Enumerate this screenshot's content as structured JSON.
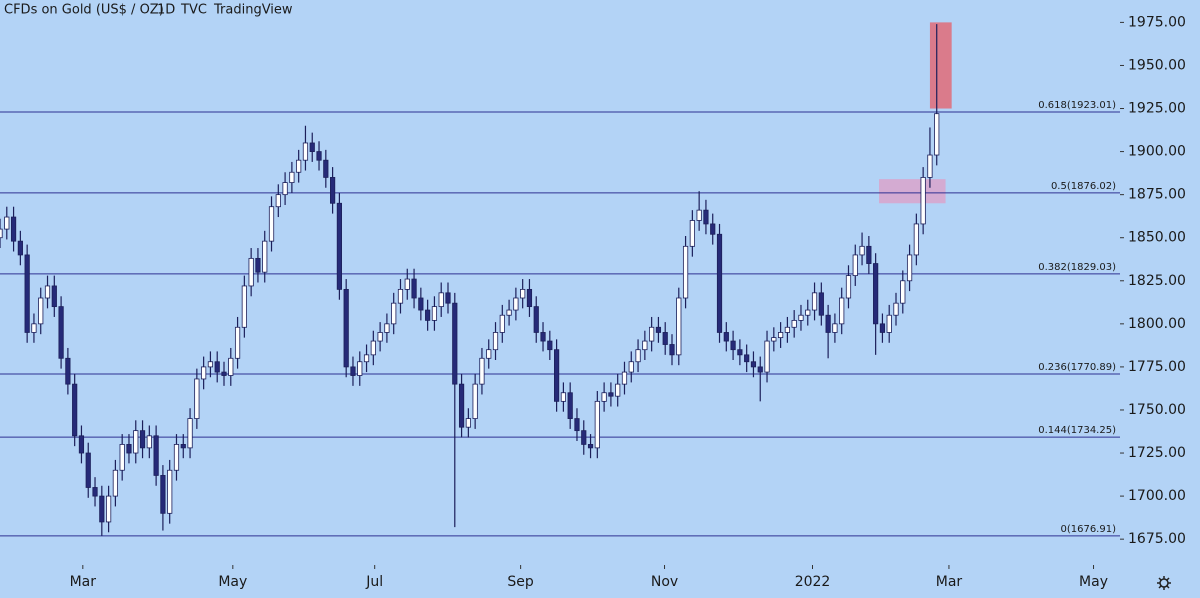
{
  "chart_data": {
    "type": "candlestick",
    "header": {
      "symbol": "CFDs on Gold (US$ / OZ)",
      "interval": "1D",
      "exchange": "TVC",
      "source": "TradingView"
    },
    "open": [
      1850,
      1855,
      1862,
      1848,
      1840,
      1795,
      1800,
      1815,
      1822,
      1810,
      1780,
      1765,
      1735,
      1725,
      1705,
      1700,
      1685,
      1700,
      1715,
      1730,
      1725,
      1738,
      1728,
      1735,
      1712,
      1690,
      1715,
      1730,
      1728,
      1745,
      1768,
      1775,
      1778,
      1772,
      1770,
      1780,
      1798,
      1822,
      1838,
      1830,
      1848,
      1868,
      1875,
      1882,
      1888,
      1895,
      1905,
      1900,
      1895,
      1885,
      1870,
      1820,
      1775,
      1770,
      1778,
      1782,
      1790,
      1795,
      1800,
      1812,
      1820,
      1826,
      1815,
      1808,
      1802,
      1810,
      1818,
      1812,
      1765,
      1740,
      1745,
      1765,
      1780,
      1785,
      1795,
      1805,
      1808,
      1815,
      1820,
      1810,
      1795,
      1790,
      1785,
      1755,
      1760,
      1745,
      1738,
      1730,
      1728,
      1755,
      1760,
      1758,
      1765,
      1772,
      1778,
      1785,
      1790,
      1798,
      1795,
      1788,
      1782,
      1815,
      1845,
      1860,
      1866,
      1858,
      1852,
      1795,
      1790,
      1785,
      1782,
      1778,
      1775,
      1772,
      1790,
      1792,
      1795,
      1798,
      1802,
      1805,
      1808,
      1818,
      1805,
      1795,
      1800,
      1815,
      1828,
      1840,
      1845,
      1835,
      1800,
      1795,
      1805,
      1812,
      1825,
      1840,
      1858,
      1885,
      1898
    ],
    "high": [
      1861,
      1868,
      1868,
      1854,
      1846,
      1806,
      1821,
      1828,
      1828,
      1816,
      1786,
      1771,
      1741,
      1731,
      1711,
      1706,
      1706,
      1721,
      1736,
      1736,
      1744,
      1744,
      1741,
      1741,
      1718,
      1721,
      1736,
      1736,
      1751,
      1774,
      1781,
      1784,
      1784,
      1778,
      1786,
      1804,
      1828,
      1844,
      1844,
      1854,
      1874,
      1881,
      1888,
      1894,
      1901,
      1915,
      1911,
      1906,
      1901,
      1891,
      1876,
      1826,
      1781,
      1784,
      1788,
      1796,
      1801,
      1806,
      1818,
      1826,
      1832,
      1832,
      1821,
      1814,
      1816,
      1824,
      1824,
      1818,
      1771,
      1751,
      1771,
      1786,
      1791,
      1801,
      1811,
      1814,
      1821,
      1826,
      1826,
      1816,
      1801,
      1796,
      1791,
      1766,
      1766,
      1751,
      1744,
      1736,
      1761,
      1766,
      1766,
      1771,
      1778,
      1784,
      1791,
      1796,
      1804,
      1804,
      1801,
      1794,
      1821,
      1851,
      1866,
      1877,
      1872,
      1864,
      1858,
      1801,
      1796,
      1791,
      1788,
      1784,
      1781,
      1796,
      1798,
      1801,
      1804,
      1808,
      1811,
      1814,
      1824,
      1824,
      1811,
      1806,
      1821,
      1834,
      1846,
      1853,
      1851,
      1841,
      1806,
      1811,
      1818,
      1831,
      1846,
      1864,
      1891,
      1914,
      1974
    ],
    "low": [
      1844,
      1849,
      1842,
      1834,
      1789,
      1789,
      1794,
      1809,
      1804,
      1774,
      1759,
      1729,
      1719,
      1699,
      1694,
      1677,
      1679,
      1694,
      1709,
      1719,
      1719,
      1722,
      1722,
      1706,
      1680,
      1684,
      1709,
      1722,
      1722,
      1739,
      1762,
      1769,
      1766,
      1764,
      1764,
      1774,
      1792,
      1816,
      1824,
      1824,
      1842,
      1862,
      1869,
      1876,
      1882,
      1889,
      1894,
      1889,
      1879,
      1864,
      1814,
      1769,
      1764,
      1764,
      1772,
      1776,
      1784,
      1789,
      1794,
      1806,
      1814,
      1809,
      1802,
      1796,
      1796,
      1804,
      1806,
      1682,
      1734,
      1734,
      1739,
      1759,
      1774,
      1779,
      1789,
      1799,
      1802,
      1809,
      1804,
      1789,
      1784,
      1779,
      1749,
      1749,
      1739,
      1732,
      1724,
      1722,
      1722,
      1749,
      1752,
      1752,
      1759,
      1766,
      1772,
      1779,
      1784,
      1789,
      1782,
      1776,
      1776,
      1809,
      1839,
      1854,
      1852,
      1846,
      1789,
      1784,
      1779,
      1776,
      1772,
      1769,
      1755,
      1766,
      1784,
      1786,
      1789,
      1792,
      1796,
      1799,
      1802,
      1799,
      1780,
      1789,
      1794,
      1809,
      1822,
      1834,
      1829,
      1782,
      1789,
      1789,
      1799,
      1806,
      1819,
      1834,
      1852,
      1879,
      1892
    ],
    "close": [
      1855,
      1862,
      1848,
      1840,
      1795,
      1800,
      1815,
      1822,
      1810,
      1780,
      1765,
      1735,
      1725,
      1705,
      1700,
      1685,
      1700,
      1715,
      1730,
      1725,
      1738,
      1728,
      1735,
      1712,
      1690,
      1715,
      1730,
      1728,
      1745,
      1768,
      1775,
      1778,
      1772,
      1770,
      1780,
      1798,
      1822,
      1838,
      1830,
      1848,
      1868,
      1875,
      1882,
      1888,
      1895,
      1905,
      1900,
      1895,
      1885,
      1870,
      1820,
      1775,
      1770,
      1778,
      1782,
      1790,
      1795,
      1800,
      1812,
      1820,
      1826,
      1815,
      1808,
      1802,
      1810,
      1818,
      1812,
      1765,
      1740,
      1745,
      1765,
      1780,
      1785,
      1795,
      1805,
      1808,
      1815,
      1820,
      1810,
      1795,
      1790,
      1785,
      1755,
      1760,
      1745,
      1738,
      1730,
      1728,
      1755,
      1760,
      1758,
      1765,
      1772,
      1778,
      1785,
      1790,
      1798,
      1795,
      1788,
      1782,
      1815,
      1845,
      1860,
      1866,
      1858,
      1852,
      1795,
      1790,
      1785,
      1782,
      1778,
      1775,
      1772,
      1790,
      1792,
      1795,
      1798,
      1802,
      1805,
      1808,
      1818,
      1805,
      1795,
      1800,
      1815,
      1828,
      1840,
      1845,
      1835,
      1800,
      1795,
      1805,
      1812,
      1825,
      1840,
      1858,
      1885,
      1898,
      1922
    ],
    "up_color": "#ffffff",
    "down_color": "#262a78",
    "wick_color": "#1c1f5a",
    "xlim": [
      0,
      165
    ],
    "xticks": [
      {
        "value": 12.2,
        "label": "Mar"
      },
      {
        "value": 34.3,
        "label": "May"
      },
      {
        "value": 55.2,
        "label": "Jul"
      },
      {
        "value": 76.7,
        "label": "Sep"
      },
      {
        "value": 97.9,
        "label": "Nov"
      },
      {
        "value": 119.7,
        "label": "2022"
      },
      {
        "value": 139.8,
        "label": "Mar"
      },
      {
        "value": 161.1,
        "label": "May"
      }
    ],
    "ylim": [
      1660,
      1988
    ],
    "yticks": [
      {
        "value": 1675,
        "label": "1675.00"
      },
      {
        "value": 1700,
        "label": "1700.00"
      },
      {
        "value": 1725,
        "label": "1725.00"
      },
      {
        "value": 1750,
        "label": "1750.00"
      },
      {
        "value": 1775,
        "label": "1775.00"
      },
      {
        "value": 1800,
        "label": "1800.00"
      },
      {
        "value": 1825,
        "label": "1825.00"
      },
      {
        "value": 1850,
        "label": "1850.00"
      },
      {
        "value": 1875,
        "label": "1875.00"
      },
      {
        "value": 1900,
        "label": "1900.00"
      },
      {
        "value": 1925,
        "label": "1925.00"
      },
      {
        "value": 1950,
        "label": "1950.00"
      },
      {
        "value": 1975,
        "label": "1975.00"
      }
    ],
    "fib_color": "#2e3192",
    "fib_levels": [
      {
        "value": 1923.01,
        "label": "0.618(1923.01)"
      },
      {
        "value": 1876.02,
        "label": "0.5(1876.02)"
      },
      {
        "value": 1829.03,
        "label": "0.382(1829.03)"
      },
      {
        "value": 1770.89,
        "label": "0.236(1770.89)"
      },
      {
        "value": 1734.25,
        "label": "0.144(1734.25)"
      },
      {
        "value": 1676.91,
        "label": "0(1676.91)"
      }
    ],
    "zones": [
      {
        "x": [
          137.0,
          140.2
        ],
        "y": [
          1925,
          1975
        ],
        "color": "#e06b78"
      },
      {
        "x": [
          129.5,
          139.3
        ],
        "y": [
          1870,
          1884
        ],
        "color": "#d9a3cb"
      }
    ]
  }
}
